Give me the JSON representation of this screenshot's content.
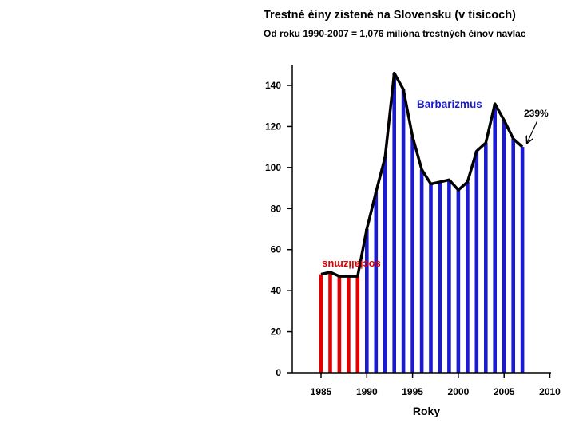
{
  "chart_data": {
    "type": "bar",
    "title": "Trestné èiny zistené na Slovensku (v tisícoch)",
    "subtitle": "Od roku 1990-2007 = 1,076 milióna trestných èinov navlac",
    "xlabel": "Roky",
    "ylabel": "",
    "xlim": [
      1983,
      2010
    ],
    "ylim": [
      0,
      150
    ],
    "x_ticks": [
      1985,
      1990,
      1995,
      2000,
      2005,
      2010
    ],
    "y_ticks": [
      0,
      20,
      40,
      60,
      80,
      100,
      120,
      140
    ],
    "years": [
      1985,
      1986,
      1987,
      1988,
      1989,
      1990,
      1991,
      1992,
      1993,
      1994,
      1995,
      1996,
      1997,
      1998,
      1999,
      2000,
      2001,
      2002,
      2003,
      2004,
      2005,
      2006,
      2007
    ],
    "values": [
      48,
      49,
      47,
      47,
      47,
      70,
      88,
      105,
      146,
      138,
      115,
      99,
      92,
      93,
      94,
      89,
      93,
      108,
      112,
      131,
      123,
      114,
      110
    ],
    "series": [
      {
        "name": "socializmus",
        "color": "#e00000",
        "years": [
          1985,
          1986,
          1987,
          1988,
          1989
        ]
      },
      {
        "name": "Barbarizmus",
        "color": "#1a1ad0",
        "years": [
          1990,
          1991,
          1992,
          1993,
          1994,
          1995,
          1996,
          1997,
          1998,
          1999,
          2000,
          2001,
          2002,
          2003,
          2004,
          2005,
          2006,
          2007
        ]
      }
    ],
    "annotations": {
      "barbarizmus_label": "Barbarizmus",
      "socializmus_label": "socializmus",
      "growth_label": "239%"
    }
  },
  "colors": {
    "red": "#e00000",
    "blue": "#1a1ad0",
    "outline": "#000000"
  }
}
